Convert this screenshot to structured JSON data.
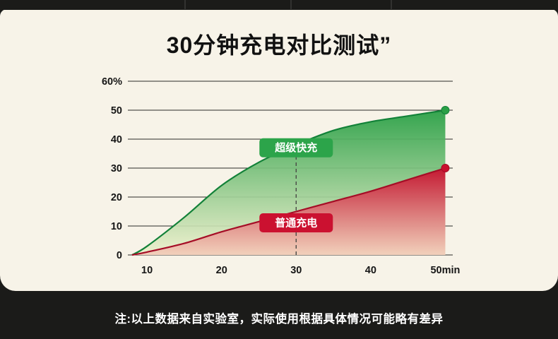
{
  "title": "30分钟充电对比测试”",
  "footnote": "注:以上数据来自实验室，实际使用根据具体情况可能略有差异",
  "colors": {
    "bg_dark": "#1b1b19",
    "panel": "#f7f3e8",
    "ink": "#111111",
    "note": "#ffffff"
  },
  "chart_data": {
    "type": "area",
    "title": "30分钟充电对比测试”",
    "x": [
      8,
      10,
      15,
      20,
      25,
      30,
      35,
      40,
      45,
      50
    ],
    "series": [
      {
        "key": "super-fast-charge",
        "name": "超级快充",
        "color": "#2aa046",
        "edge": "#128138",
        "fade": "#eef0cc",
        "pill": "#2ca44a",
        "values": [
          0,
          3,
          13,
          24,
          32,
          38,
          43,
          46,
          48,
          50
        ],
        "end_value": 50
      },
      {
        "key": "normal-charge",
        "name": "普通充电",
        "color": "#c8102e",
        "edge": "#a50d26",
        "fade": "#f2cdb9",
        "pill": "#cb1130",
        "values": [
          0,
          1,
          4,
          8,
          11.5,
          15,
          18.5,
          22,
          26,
          30
        ],
        "end_value": 30
      }
    ],
    "xlim": [
      8,
      51
    ],
    "ylim": [
      0,
      60
    ],
    "ytick_values": [
      0,
      10,
      20,
      30,
      40,
      50,
      60
    ],
    "ytick_labels": [
      "0",
      "10",
      "20",
      "30",
      "40",
      "50",
      "60%"
    ],
    "xtick_values": [
      10,
      20,
      30,
      40,
      50
    ],
    "xtick_labels": [
      "10",
      "20",
      "30",
      "40",
      "50min"
    ],
    "dashed_marker_x": 30,
    "grid": true,
    "legend_position": "on-chart pills"
  }
}
